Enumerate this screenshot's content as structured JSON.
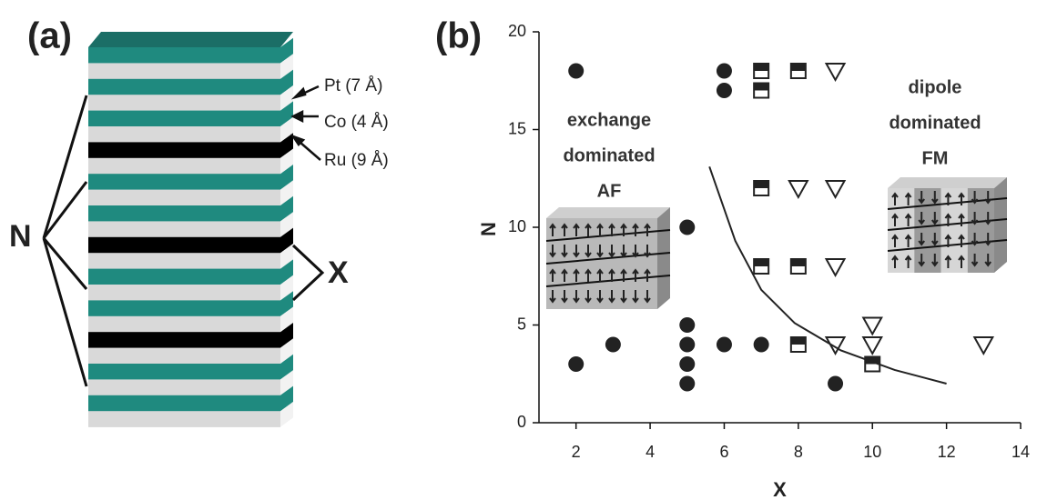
{
  "panel_a": {
    "label": "(a)",
    "layers": [
      "Pt (7 Å)",
      "Co (4 Å)",
      "Ru (9 Å)"
    ],
    "n_label": "N",
    "x_label": "X"
  },
  "chart_data": {
    "type": "scatter",
    "label": "(b)",
    "x_label": "X",
    "y_label": "N",
    "xlim": [
      1,
      14
    ],
    "ylim": [
      0,
      20
    ],
    "xticks": [
      2,
      4,
      6,
      8,
      10,
      12,
      14
    ],
    "yticks": [
      0,
      5,
      10,
      15,
      20
    ],
    "annotations": [
      {
        "lines": [
          "exchange",
          "dominated",
          "AF"
        ]
      },
      {
        "lines": [
          "dipole",
          "dominated",
          "FM"
        ]
      }
    ],
    "series": [
      {
        "marker": "circle",
        "color": "#222222",
        "x": [
          2,
          2,
          3,
          5,
          5,
          5,
          5,
          5,
          6,
          6,
          6,
          7,
          9
        ],
        "values": [
          18,
          3,
          4,
          10,
          5,
          4,
          3,
          2,
          18,
          17,
          4,
          4,
          2
        ]
      },
      {
        "marker": "square-half",
        "color": "#222222",
        "x": [
          7,
          7,
          8,
          7,
          7,
          8,
          8,
          10
        ],
        "values": [
          18,
          17,
          18,
          12,
          8,
          8,
          4,
          3
        ]
      },
      {
        "marker": "triangle-down",
        "color": "#222222",
        "x": [
          9,
          8,
          9,
          9,
          10,
          10,
          9,
          13
        ],
        "values": [
          18,
          12,
          12,
          8,
          5,
          4,
          4,
          4
        ]
      },
      {
        "marker": "line",
        "color": "#222222",
        "x": [
          5.6,
          6.3,
          7.0,
          7.9,
          9.15,
          10.6,
          12.0
        ],
        "values": [
          13.1,
          9.3,
          6.8,
          5.1,
          3.7,
          2.7,
          2.0
        ]
      }
    ]
  }
}
